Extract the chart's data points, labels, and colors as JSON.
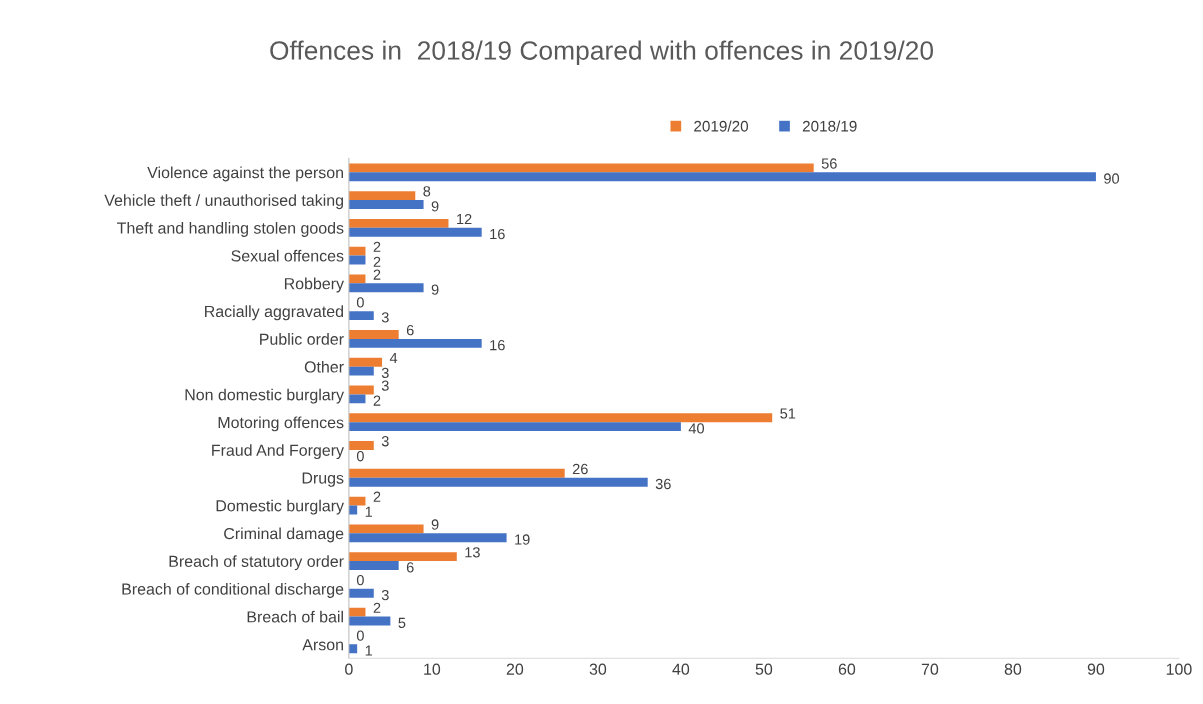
{
  "chart_data": {
    "type": "bar",
    "orientation": "horizontal",
    "title": "Offences in  2018/19 Compared with offences in 2019/20",
    "categories": [
      "Violence against the person",
      "Vehicle theft / unauthorised taking",
      "Theft and handling stolen goods",
      "Sexual offences",
      "Robbery",
      "Racially aggravated",
      "Public order",
      "Other",
      "Non domestic burglary",
      "Motoring offences",
      "Fraud And Forgery",
      "Drugs",
      "Domestic burglary",
      "Criminal damage",
      "Breach of statutory order",
      "Breach of conditional discharge",
      "Breach of bail",
      "Arson"
    ],
    "series": [
      {
        "name": "2019/20",
        "color": "#ed7d31",
        "values": [
          56,
          8,
          12,
          2,
          2,
          0,
          6,
          4,
          3,
          51,
          3,
          26,
          2,
          9,
          13,
          0,
          2,
          0
        ]
      },
      {
        "name": "2018/19",
        "color": "#4472c4",
        "values": [
          90,
          9,
          16,
          2,
          9,
          3,
          16,
          3,
          2,
          40,
          0,
          36,
          1,
          19,
          6,
          3,
          5,
          1
        ]
      }
    ],
    "xlim": [
      0,
      100
    ],
    "xticks": [
      0,
      10,
      20,
      30,
      40,
      50,
      60,
      70,
      80,
      90,
      100
    ],
    "data_labels": true,
    "legend": "top",
    "grid": false
  }
}
